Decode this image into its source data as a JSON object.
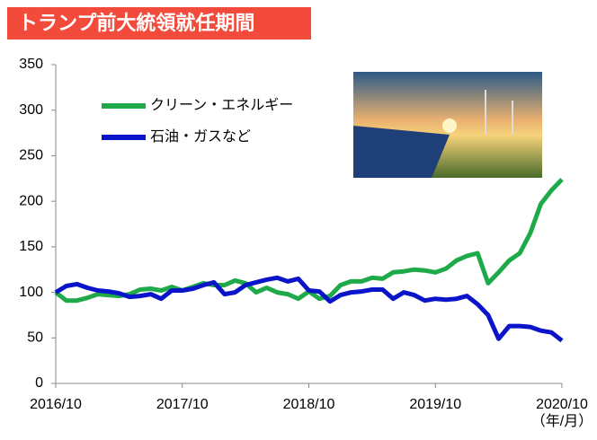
{
  "chart_data": {
    "type": "line",
    "title": "トランプ前大統領就任期間",
    "x_unit": "（年/月）",
    "categories": [
      "2016/10",
      null,
      null,
      null,
      null,
      null,
      null,
      null,
      null,
      null,
      null,
      null,
      "2017/10",
      null,
      null,
      null,
      null,
      null,
      null,
      null,
      null,
      null,
      null,
      null,
      "2018/10",
      null,
      null,
      null,
      null,
      null,
      null,
      null,
      null,
      null,
      null,
      null,
      "2019/10",
      null,
      null,
      null,
      null,
      null,
      null,
      null,
      null,
      null,
      null,
      null,
      "2020/10"
    ],
    "series": [
      {
        "name": "クリーン・エネルギー",
        "color": "#1faa4a",
        "values": [
          100,
          91,
          91,
          94,
          98,
          97,
          96,
          98,
          103,
          104,
          102,
          106,
          102,
          106,
          110,
          108,
          108,
          113,
          110,
          100,
          105,
          100,
          98,
          93,
          101,
          93,
          96,
          108,
          112,
          112,
          116,
          115,
          122,
          123,
          125,
          124,
          122,
          126,
          135,
          140,
          143,
          110,
          122,
          135,
          143,
          165,
          197,
          212,
          224
        ]
      },
      {
        "name": "石油・ガスなど",
        "color": "#0a14c8",
        "values": [
          100,
          107,
          109,
          105,
          102,
          101,
          99,
          95,
          96,
          98,
          93,
          102,
          102,
          104,
          108,
          111,
          98,
          100,
          108,
          111,
          114,
          116,
          112,
          115,
          102,
          101,
          90,
          97,
          100,
          101,
          103,
          103,
          93,
          100,
          97,
          91,
          93,
          92,
          93,
          96,
          87,
          75,
          49,
          63,
          63,
          62,
          58,
          56,
          47
        ]
      }
    ],
    "ylim": [
      0,
      350
    ],
    "yticks": [
      0,
      50,
      100,
      150,
      200,
      250,
      300,
      350
    ],
    "grid": false,
    "legend": "top-left"
  }
}
